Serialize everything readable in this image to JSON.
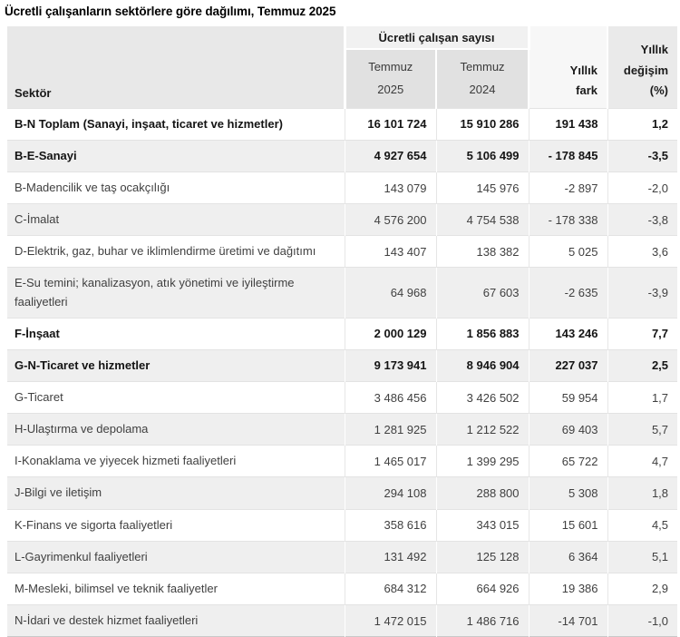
{
  "title": "Ücretli çalışanların sektörlere göre dağılımı, Temmuz 2025",
  "table": {
    "headers": {
      "sektor": "Sektör",
      "group": "Ücretli çalışan sayısı",
      "col_2025_lines": [
        "Temmuz",
        "2025"
      ],
      "col_2024_lines": [
        "Temmuz",
        "2024"
      ],
      "fark_lines": [
        "Yıllık",
        "fark"
      ],
      "degisim_lines": [
        "Yıllık",
        "değişim",
        "(%)"
      ]
    },
    "rows": [
      {
        "label": "B-N Toplam (Sanayi, inşaat, ticaret ve hizmetler)",
        "bold": true,
        "t2025": "16 101 724",
        "t2024": "15 910 286",
        "fark": "191 438",
        "pct": "1,2"
      },
      {
        "label": "B-E-Sanayi",
        "bold": true,
        "t2025": "4 927 654",
        "t2024": "5 106 499",
        "fark": "- 178 845",
        "pct": "-3,5"
      },
      {
        "label": "B-Madencilik ve taş ocakçılığı",
        "bold": false,
        "t2025": "143 079",
        "t2024": "145 976",
        "fark": "-2 897",
        "pct": "-2,0"
      },
      {
        "label": "C-İmalat",
        "bold": false,
        "t2025": "4 576 200",
        "t2024": "4 754 538",
        "fark": "- 178 338",
        "pct": "-3,8"
      },
      {
        "label": "D-Elektrik, gaz, buhar ve iklimlendirme üretimi ve dağıtımı",
        "bold": false,
        "t2025": "143 407",
        "t2024": "138 382",
        "fark": "5 025",
        "pct": "3,6"
      },
      {
        "label": "E-Su temini; kanalizasyon, atık yönetimi ve iyileştirme faaliyetleri",
        "bold": false,
        "t2025": "64 968",
        "t2024": "67 603",
        "fark": "-2 635",
        "pct": "-3,9"
      },
      {
        "label": "F-İnşaat",
        "bold": true,
        "t2025": "2 000 129",
        "t2024": "1 856 883",
        "fark": "143 246",
        "pct": "7,7"
      },
      {
        "label": "G-N-Ticaret ve hizmetler",
        "bold": true,
        "t2025": "9 173 941",
        "t2024": "8 946 904",
        "fark": "227 037",
        "pct": "2,5"
      },
      {
        "label": "G-Ticaret",
        "bold": false,
        "t2025": "3 486 456",
        "t2024": "3 426 502",
        "fark": "59 954",
        "pct": "1,7"
      },
      {
        "label": "H-Ulaştırma ve depolama",
        "bold": false,
        "t2025": "1 281 925",
        "t2024": "1 212 522",
        "fark": "69 403",
        "pct": "5,7"
      },
      {
        "label": "I-Konaklama ve yiyecek hizmeti faaliyetleri",
        "bold": false,
        "t2025": "1 465 017",
        "t2024": "1 399 295",
        "fark": "65 722",
        "pct": "4,7"
      },
      {
        "label": "J-Bilgi ve iletişim",
        "bold": false,
        "t2025": "294 108",
        "t2024": "288 800",
        "fark": "5 308",
        "pct": "1,8"
      },
      {
        "label": "K-Finans ve sigorta faaliyetleri",
        "bold": false,
        "t2025": "358 616",
        "t2024": "343 015",
        "fark": "15 601",
        "pct": "4,5"
      },
      {
        "label": "L-Gayrimenkul faaliyetleri",
        "bold": false,
        "t2025": "131 492",
        "t2024": "125 128",
        "fark": "6 364",
        "pct": "5,1"
      },
      {
        "label": "M-Mesleki, bilimsel ve teknik faaliyetler",
        "bold": false,
        "t2025": "684 312",
        "t2024": "664 926",
        "fark": "19 386",
        "pct": "2,9"
      },
      {
        "label": "N-İdari ve destek hizmet faaliyetleri",
        "bold": false,
        "t2025": "1 472 015",
        "t2024": "1 486 716",
        "fark": "-14 701",
        "pct": "-1,0"
      }
    ]
  },
  "colors": {
    "header_sektor_bg": "#e8e8e8",
    "header_group_bg": "#f1f1f1",
    "header_month_bg": "#e1e1e1",
    "header_fark_bg": "#f7f7f7",
    "header_degisim_bg": "#eaeaea",
    "row_alt_bg": "#efefef",
    "grid_line": "#e3e3e3",
    "bottom_border": "#c9c9c9"
  }
}
